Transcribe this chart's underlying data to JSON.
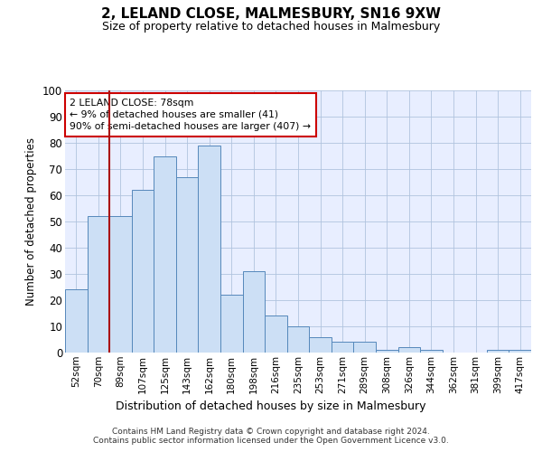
{
  "title1": "2, LELAND CLOSE, MALMESBURY, SN16 9XW",
  "title2": "Size of property relative to detached houses in Malmesbury",
  "xlabel": "Distribution of detached houses by size in Malmesbury",
  "ylabel": "Number of detached properties",
  "categories": [
    "52sqm",
    "70sqm",
    "89sqm",
    "107sqm",
    "125sqm",
    "143sqm",
    "162sqm",
    "180sqm",
    "198sqm",
    "216sqm",
    "235sqm",
    "253sqm",
    "271sqm",
    "289sqm",
    "308sqm",
    "326sqm",
    "344sqm",
    "362sqm",
    "381sqm",
    "399sqm",
    "417sqm"
  ],
  "values": [
    24,
    52,
    52,
    62,
    75,
    67,
    79,
    22,
    31,
    14,
    10,
    6,
    4,
    4,
    1,
    2,
    1,
    0,
    0,
    1,
    1
  ],
  "bar_color": "#ccdff5",
  "bar_edge_color": "#5588bb",
  "ylim": [
    0,
    100
  ],
  "yticks": [
    0,
    10,
    20,
    30,
    40,
    50,
    60,
    70,
    80,
    90,
    100
  ],
  "vline_color": "#aa1111",
  "annotation_text": "2 LELAND CLOSE: 78sqm\n← 9% of detached houses are smaller (41)\n90% of semi-detached houses are larger (407) →",
  "annotation_box_color": "#ffffff",
  "annotation_box_edge": "#cc0000",
  "footer1": "Contains HM Land Registry data © Crown copyright and database right 2024.",
  "footer2": "Contains public sector information licensed under the Open Government Licence v3.0.",
  "bg_color": "#e8eeff",
  "grid_color": "#b0c4de",
  "title1_fontsize": 11,
  "title2_fontsize": 9
}
